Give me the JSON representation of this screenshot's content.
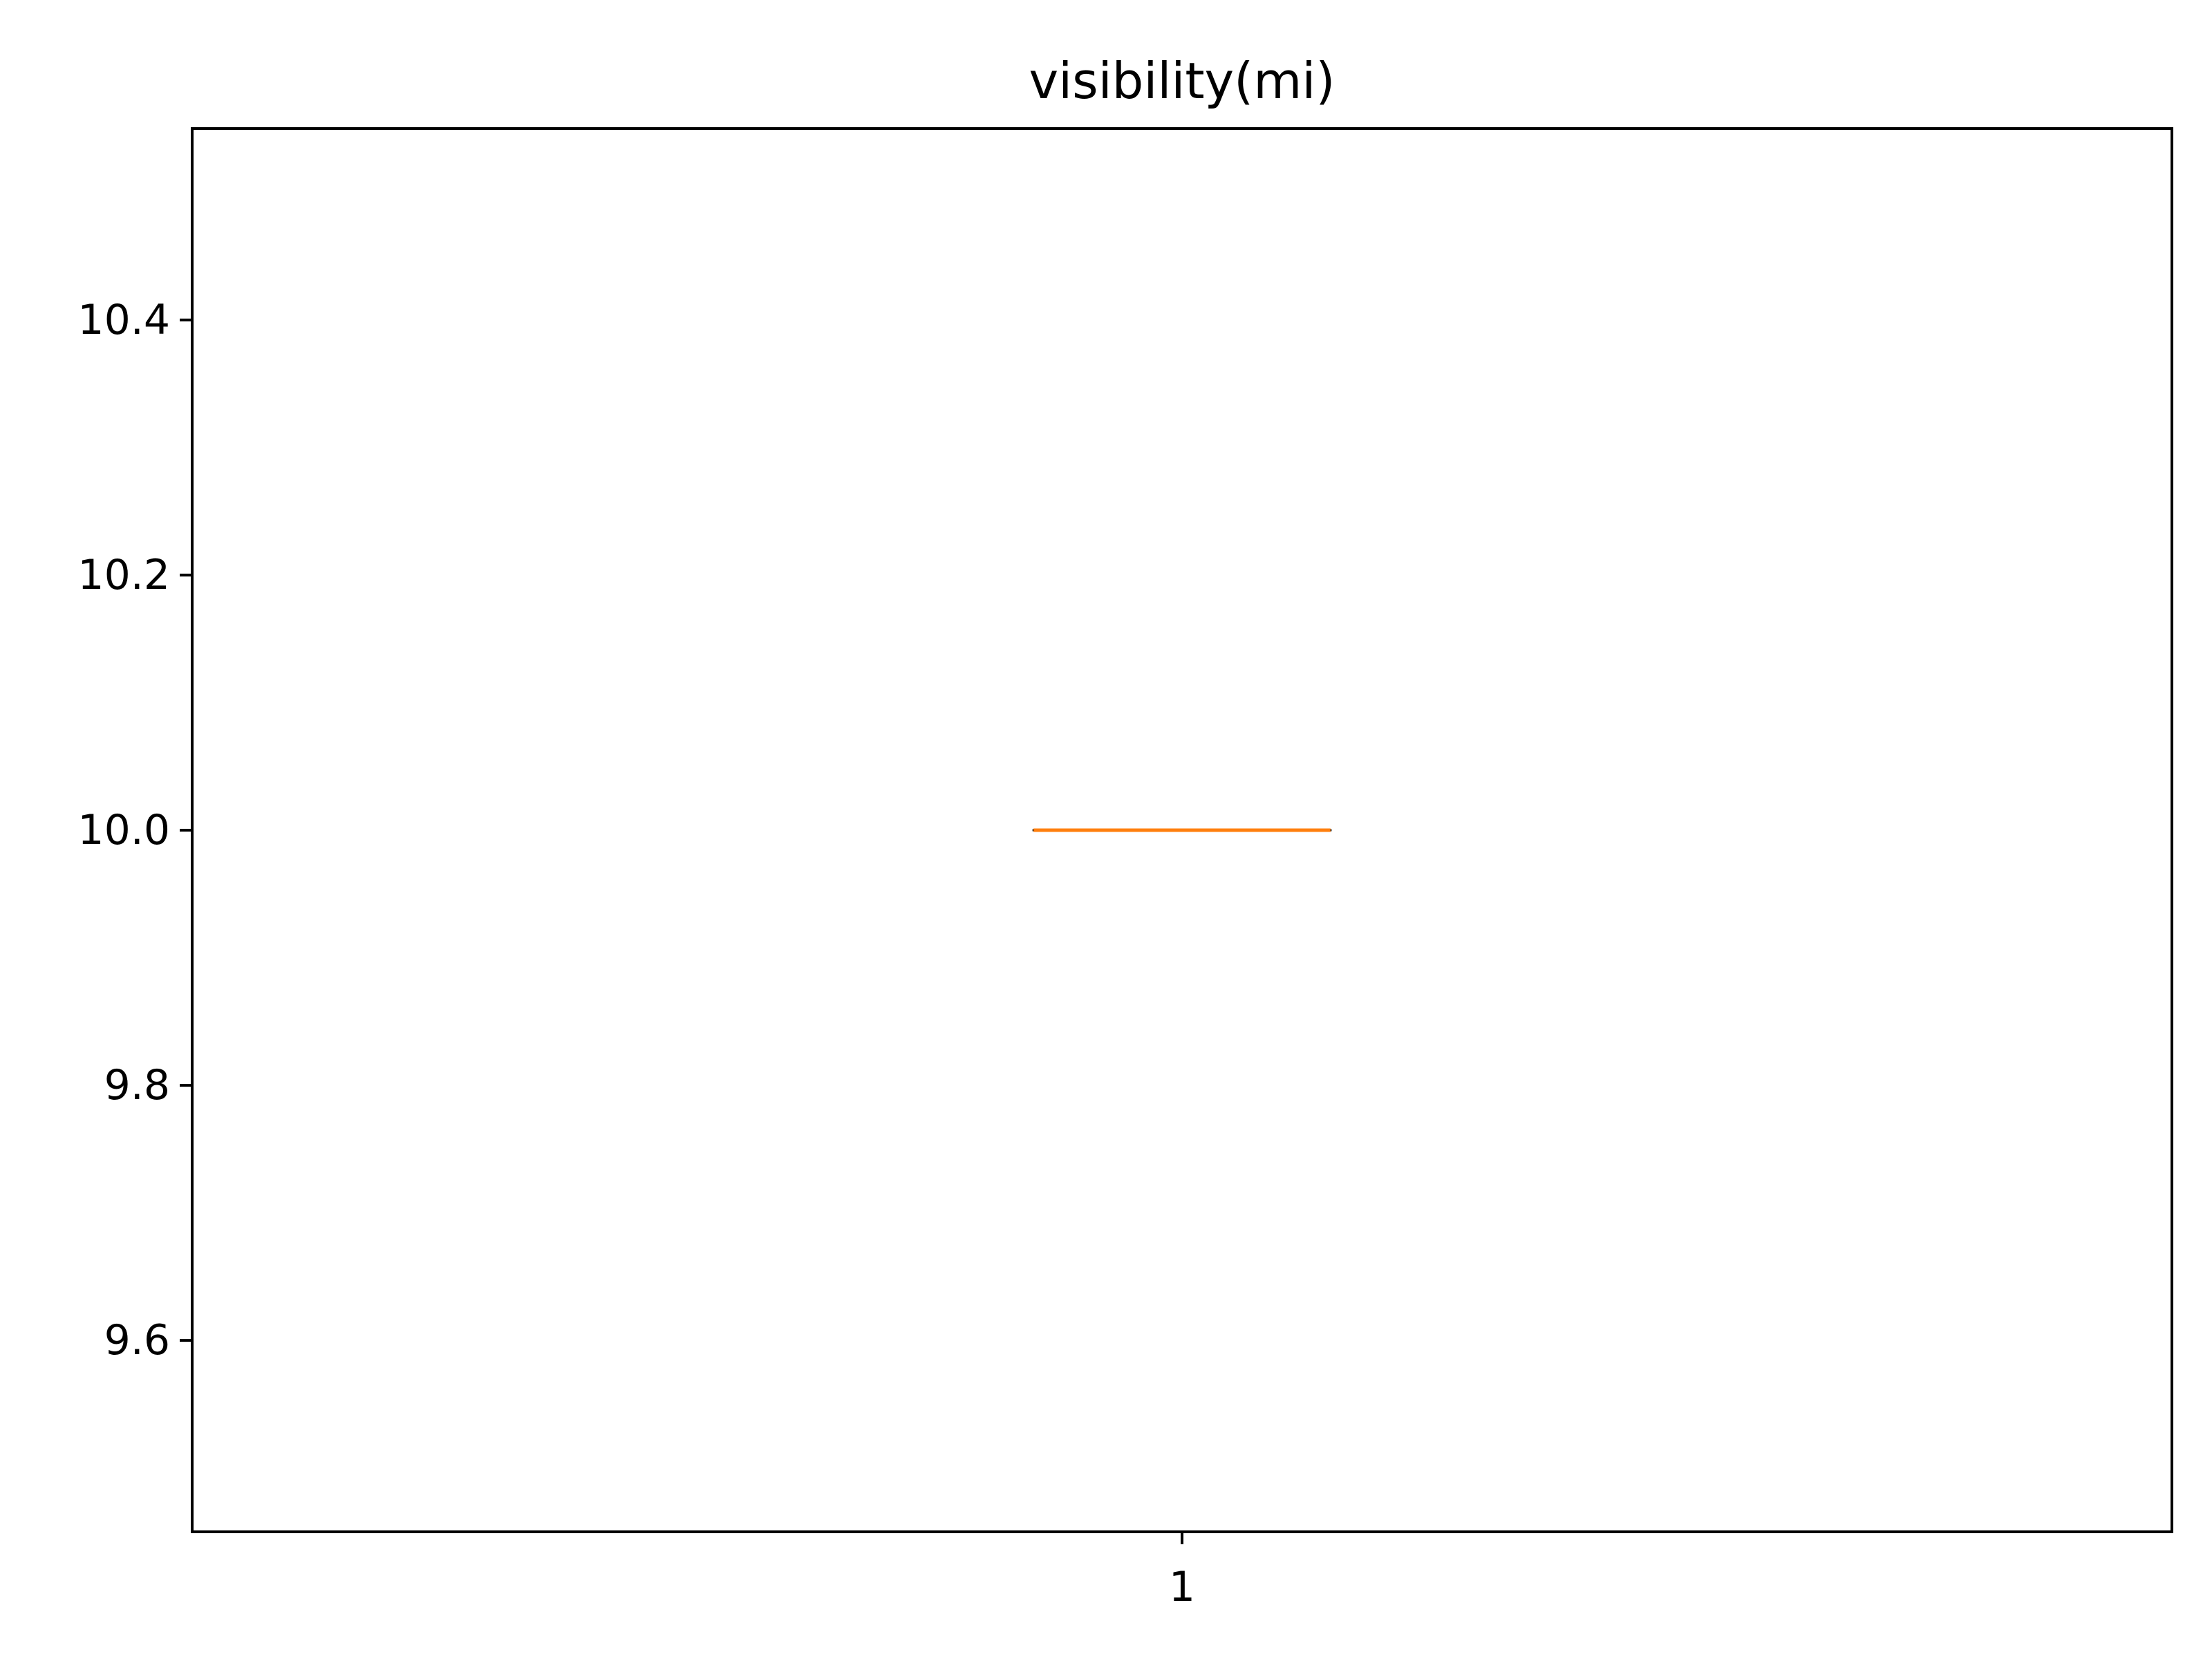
{
  "chart_data": {
    "type": "box",
    "title": "visibility(mi)",
    "xlabel": "",
    "ylabel": "",
    "categories": [
      "1"
    ],
    "series": [
      {
        "category": "1",
        "whisker_low": 10.0,
        "q1": 10.0,
        "median": 10.0,
        "q3": 10.0,
        "whisker_high": 10.0
      }
    ],
    "ylim": [
      9.45,
      10.55
    ],
    "yticks": [
      9.6,
      9.8,
      10.0,
      10.2,
      10.4
    ],
    "ytick_labels": [
      "9.6",
      "9.8",
      "10.0",
      "10.2",
      "10.4"
    ],
    "xticks": [
      1
    ],
    "xtick_labels": [
      "1"
    ],
    "xlim": [
      0.5,
      1.5
    ],
    "box_width": 0.15,
    "grid": false,
    "colors": {
      "box": "#000000",
      "median": "#ff7f0e",
      "axes": "#000000",
      "background": "#ffffff"
    }
  }
}
